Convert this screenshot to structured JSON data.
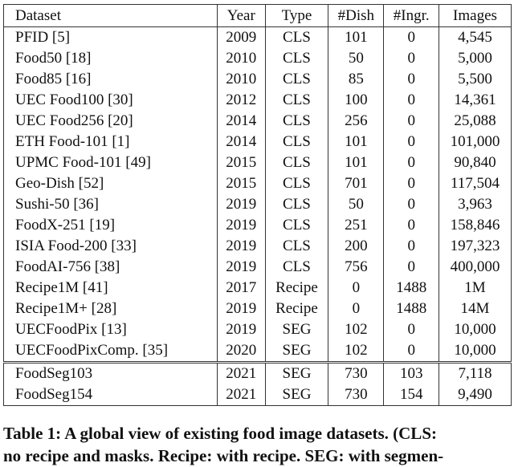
{
  "table": {
    "header": [
      "Dataset",
      "Year",
      "Type",
      "#Dish",
      "#Ingr.",
      "Images"
    ],
    "groups": [
      [
        [
          "PFID [5]",
          "2009",
          "CLS",
          "101",
          "0",
          "4,545"
        ],
        [
          "Food50 [18]",
          "2010",
          "CLS",
          "50",
          "0",
          "5,000"
        ],
        [
          "Food85 [16]",
          "2010",
          "CLS",
          "85",
          "0",
          "5,500"
        ],
        [
          "UEC Food100 [30]",
          "2012",
          "CLS",
          "100",
          "0",
          "14,361"
        ],
        [
          "UEC Food256 [20]",
          "2014",
          "CLS",
          "256",
          "0",
          "25,088"
        ],
        [
          "ETH Food-101 [1]",
          "2014",
          "CLS",
          "101",
          "0",
          "101,000"
        ],
        [
          "UPMC Food-101 [49]",
          "2015",
          "CLS",
          "101",
          "0",
          "90,840"
        ],
        [
          "Geo-Dish [52]",
          "2015",
          "CLS",
          "701",
          "0",
          "117,504"
        ],
        [
          "Sushi-50 [36]",
          "2019",
          "CLS",
          "50",
          "0",
          "3,963"
        ],
        [
          "FoodX-251 [19]",
          "2019",
          "CLS",
          "251",
          "0",
          "158,846"
        ],
        [
          "ISIA Food-200 [33]",
          "2019",
          "CLS",
          "200",
          "0",
          "197,323"
        ],
        [
          "FoodAI-756 [38]",
          "2019",
          "CLS",
          "756",
          "0",
          "400,000"
        ],
        [
          "Recipe1M [41]",
          "2017",
          "Recipe",
          "0",
          "1488",
          "1M"
        ],
        [
          "Recipe1M+ [28]",
          "2019",
          "Recipe",
          "0",
          "1488",
          "14M"
        ],
        [
          "UECFoodPix [13]",
          "2019",
          "SEG",
          "102",
          "0",
          "10,000"
        ],
        [
          "UECFoodPixComp. [35]",
          "2020",
          "SEG",
          "102",
          "0",
          "10,000"
        ]
      ],
      [
        [
          "FoodSeg103",
          "2021",
          "SEG",
          "730",
          "103",
          "7,118"
        ],
        [
          "FoodSeg154",
          "2021",
          "SEG",
          "730",
          "154",
          "9,490"
        ]
      ]
    ],
    "caption": [
      "Table 1: A global view of existing food image datasets. (CLS:",
      "no recipe and masks. Recipe: with recipe. SEG: with segmen-"
    ]
  }
}
